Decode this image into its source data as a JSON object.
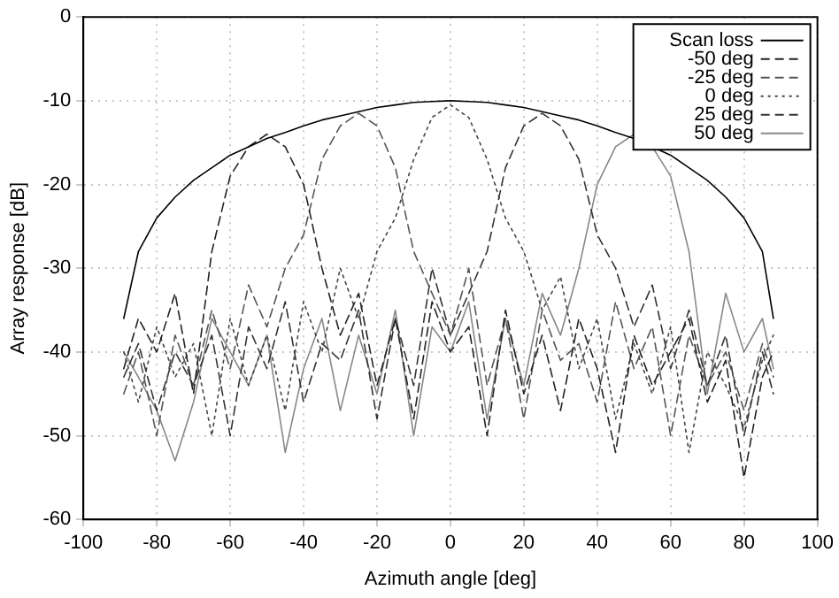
{
  "chart_data": {
    "type": "line",
    "xlabel": "Azimuth angle [deg]",
    "ylabel": "Array response [dB]",
    "x": [
      -89,
      -85,
      -80,
      -75,
      -70,
      -65,
      -60,
      -55,
      -50,
      -45,
      -40,
      -35,
      -30,
      -25,
      -20,
      -15,
      -10,
      -5,
      0,
      5,
      10,
      15,
      20,
      25,
      30,
      35,
      40,
      45,
      50,
      55,
      60,
      65,
      70,
      75,
      80,
      85,
      88
    ],
    "series": [
      {
        "name": "Scan loss",
        "color": "#000000",
        "line_style": "solid",
        "values": [
          -36,
          -28,
          -24,
          -21.5,
          -19.5,
          -18,
          -16.5,
          -15.5,
          -14.5,
          -13.8,
          -13,
          -12.3,
          -11.8,
          -11.3,
          -10.8,
          -10.5,
          -10.2,
          -10.1,
          -10,
          -10.1,
          -10.2,
          -10.5,
          -10.8,
          -11.3,
          -11.8,
          -12.3,
          -13,
          -13.8,
          -14.5,
          -15.5,
          -16.5,
          -18,
          -19.5,
          -21.5,
          -24,
          -28,
          -36
        ]
      },
      {
        "name": "-50 deg",
        "color": "#222222",
        "line_style": "dashed",
        "values": [
          -42,
          -36,
          -40,
          -33,
          -45,
          -28,
          -19,
          -15.5,
          -14,
          -15.5,
          -20,
          -30,
          -38,
          -33,
          -44,
          -36,
          -48,
          -34,
          -40,
          -37,
          -50,
          -35,
          -45,
          -38,
          -47,
          -36,
          -42,
          -52,
          -38,
          -44,
          -40,
          -36,
          -46,
          -41,
          -55,
          -43,
          -40
        ]
      },
      {
        "name": "-25 deg",
        "color": "#555555",
        "line_style": "dashed",
        "values": [
          -45,
          -40,
          -50,
          -38,
          -44,
          -35,
          -42,
          -32,
          -37,
          -30,
          -26,
          -17,
          -13,
          -11.5,
          -13,
          -18,
          -28,
          -33,
          -38,
          -30,
          -44,
          -36,
          -48,
          -35,
          -41,
          -39,
          -46,
          -34,
          -42,
          -37,
          -50,
          -38,
          -44,
          -40,
          -47,
          -39,
          -43
        ]
      },
      {
        "name": "0 deg",
        "color": "#444444",
        "line_style": "dotted",
        "values": [
          -40,
          -46,
          -37,
          -43,
          -39,
          -50,
          -36,
          -44,
          -38,
          -47,
          -34,
          -40,
          -30,
          -36,
          -28,
          -24,
          -17,
          -12,
          -10.5,
          -12,
          -17,
          -24,
          -28,
          -35,
          -31,
          -42,
          -36,
          -48,
          -39,
          -45,
          -37,
          -52,
          -40,
          -44,
          -49,
          -41,
          -38
        ]
      },
      {
        "name": "25 deg",
        "color": "#333333",
        "line_style": "dashed",
        "values": [
          -43,
          -39,
          -47,
          -40,
          -44,
          -38,
          -50,
          -37,
          -42,
          -34,
          -46,
          -39,
          -41,
          -35,
          -48,
          -36,
          -44,
          -30,
          -38,
          -33,
          -28,
          -18,
          -13,
          -11.5,
          -13,
          -17,
          -26,
          -30,
          -37,
          -32,
          -42,
          -35,
          -44,
          -38,
          -50,
          -40,
          -45
        ]
      },
      {
        "name": "50 deg",
        "color": "#888888",
        "line_style": "solid",
        "values": [
          -40,
          -43,
          -47,
          -53,
          -46,
          -36,
          -40,
          -44,
          -38,
          -52,
          -42,
          -36,
          -47,
          -38,
          -45,
          -35,
          -50,
          -37,
          -40,
          -34,
          -48,
          -36,
          -44,
          -33,
          -38,
          -30,
          -20,
          -15.5,
          -14,
          -15.5,
          -19,
          -28,
          -45,
          -33,
          -40,
          -36,
          -42
        ]
      }
    ],
    "xlim": [
      -100,
      100
    ],
    "xticks": [
      -100,
      -80,
      -60,
      -40,
      -20,
      0,
      20,
      40,
      60,
      80,
      100
    ],
    "ylim": [
      -60,
      0
    ],
    "yticks": [
      -60,
      -50,
      -40,
      -30,
      -20,
      -10,
      0
    ],
    "grid": true,
    "legend": "top right",
    "marker": "none"
  }
}
